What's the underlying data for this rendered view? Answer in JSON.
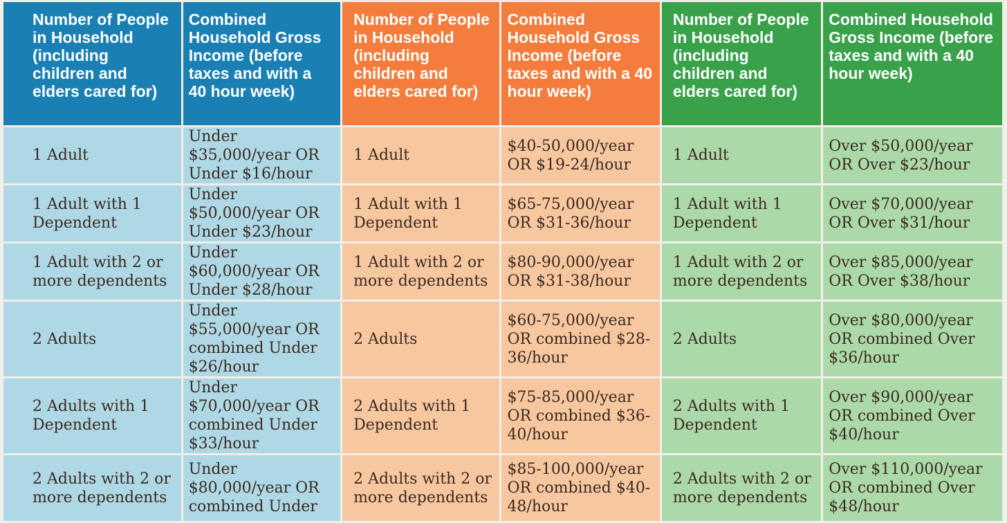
{
  "headers": [
    {
      "tier": "blue",
      "people": "Number of People in Household (including children and elders cared for)",
      "income": "Combined Household Gross Income (before taxes and with a 40 hour week)"
    },
    {
      "tier": "orange",
      "people": "Number of People in Household (including children and elders cared for)",
      "income": "Combined Household Gross Income (before taxes and with a 40 hour week)"
    },
    {
      "tier": "green",
      "people": "Number of People in Household (including children and elders cared for)",
      "income": "Combined Household Gross Income (before taxes and with a 40 hour week)"
    }
  ],
  "rows": [
    {
      "blue_people": "1 Adult",
      "blue_income": "Under $35,000/year OR Under $16/hour",
      "orange_people": "1 Adult",
      "orange_income": "$40-50,000/year OR $19-24/hour",
      "green_people": "1 Adult",
      "green_income": "Over $50,000/year OR Over $23/hour"
    },
    {
      "blue_people": "1 Adult with 1 Dependent",
      "blue_income": "Under $50,000/year OR Under $23/hour",
      "orange_people": "1 Adult with 1 Dependent",
      "orange_income": "$65-75,000/year OR $31-36/hour",
      "green_people": "1 Adult with 1 Dependent",
      "green_income": "Over $70,000/year OR Over $31/hour"
    },
    {
      "blue_people": "1 Adult with 2 or more dependents",
      "blue_income": "Under $60,000/year OR Under $28/hour",
      "orange_people": "1 Adult with 2 or more dependents",
      "orange_income": "$80-90,000/year OR $31-38/hour",
      "green_people": "1 Adult with 2 or more dependents",
      "green_income": "Over $85,000/year OR Over $38/hour"
    },
    {
      "blue_people": "2 Adults",
      "blue_income": "Under $55,000/year OR combined Under $26/hour",
      "orange_people": "2 Adults",
      "orange_income": "$60-75,000/year OR combined $28-36/hour",
      "green_people": "2 Adults",
      "green_income": "Over $80,000/year OR combined Over $36/hour"
    },
    {
      "blue_people": "2 Adults with 1 Dependent",
      "blue_income": "Under $70,000/year OR combined Under $33/hour",
      "orange_people": "2 Adults with 1 Dependent",
      "orange_income": "$75-85,000/year OR combined $36-40/hour",
      "green_people": "2 Adults with 1 Dependent",
      "green_income": "Over $90,000/year OR combined Over $40/hour"
    },
    {
      "blue_people": "2 Adults with 2 or more dependents",
      "blue_income": "Under $80,000/year OR combined Under",
      "orange_people": "2 Adults with 2 or more dependents",
      "orange_income": "$85-100,000/year OR combined $40-48/hour",
      "green_people": "2 Adults with 2 or more dependents",
      "green_income": "Over $110,000/year OR combined Over $48/hour"
    }
  ],
  "colors": {
    "blue_header": "#1a80b4",
    "blue_cell": "#aed8e5",
    "orange_header": "#f47c3c",
    "orange_cell": "#f7c7a0",
    "green_header": "#38a14a",
    "green_cell": "#acd9a9"
  }
}
